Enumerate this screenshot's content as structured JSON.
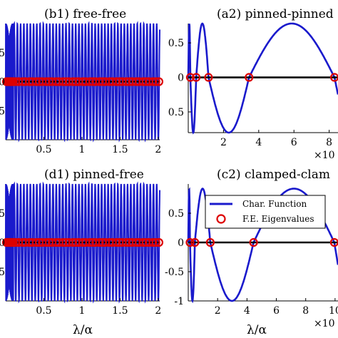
{
  "chart_data": [
    {
      "panel": "b1",
      "type": "line",
      "title": "(b1) free-free",
      "xlim": [
        0,
        2.02
      ],
      "ylim": [
        -1,
        1
      ],
      "xticks": [
        "0.5",
        "1",
        "1.5",
        "2"
      ],
      "yticks_visible": [
        "5",
        "0",
        "5"
      ],
      "series": [
        {
          "kind": "curve",
          "color": "#1a1acc",
          "note_cycles": 23
        },
        {
          "kind": "baseline",
          "color": "#000000",
          "y": 0
        },
        {
          "kind": "markers",
          "color": "#dd0000",
          "x": [
            0.01,
            0.02,
            0.03,
            0.04,
            0.05,
            0.06,
            0.07,
            0.08,
            0.09,
            0.1,
            0.13,
            0.17,
            0.22,
            0.26,
            0.31,
            0.35,
            0.4,
            0.44,
            0.48,
            0.53,
            0.57,
            0.61,
            0.66,
            0.7,
            0.75,
            0.79,
            0.83,
            0.88,
            0.92,
            0.96,
            1.01,
            1.05,
            1.1,
            1.14,
            1.18,
            1.23,
            1.27,
            1.31,
            1.36,
            1.4,
            1.45,
            1.49,
            1.53,
            1.58,
            1.62,
            1.66,
            1.71,
            1.75,
            1.8,
            1.84,
            1.88,
            1.93,
            1.97,
            2.01
          ]
        }
      ]
    },
    {
      "panel": "a2",
      "type": "line",
      "title": "(a2) pinned-pinned",
      "xlim": [
        0,
        8.5
      ],
      "ylim": [
        -0.8,
        0.78
      ],
      "xticks": [
        "2",
        "4",
        "6",
        "8"
      ],
      "yticks": [
        "0.5",
        "0",
        "0.5"
      ],
      "x_exponent": "×10",
      "series": [
        {
          "kind": "curve",
          "color": "#1a1acc",
          "roots": [
            0.12,
            0.45,
            1.15,
            3.45,
            8.3
          ]
        },
        {
          "kind": "baseline",
          "color": "#000000",
          "y": 0
        },
        {
          "kind": "markers",
          "color": "#dd0000",
          "x": [
            0.12,
            0.45,
            1.15,
            3.45,
            8.3
          ]
        }
      ]
    },
    {
      "panel": "d1",
      "type": "line",
      "title": "(d1) pinned-free",
      "xlim": [
        0,
        2.02
      ],
      "ylim": [
        -1,
        1
      ],
      "xticks": [
        "0.5",
        "1",
        "1.5",
        "2"
      ],
      "yticks_visible": [
        "5",
        "0",
        "5"
      ],
      "xlabel": "λ/α",
      "series": [
        {
          "kind": "curve",
          "color": "#1a1acc",
          "note_cycles": 23
        },
        {
          "kind": "baseline",
          "color": "#000000",
          "y": 0
        },
        {
          "kind": "markers",
          "color": "#dd0000",
          "x": [
            0.01,
            0.02,
            0.03,
            0.04,
            0.05,
            0.06,
            0.07,
            0.08,
            0.09,
            0.1,
            0.13,
            0.17,
            0.22,
            0.26,
            0.31,
            0.35,
            0.4,
            0.44,
            0.48,
            0.53,
            0.57,
            0.61,
            0.66,
            0.7,
            0.75,
            0.79,
            0.83,
            0.88,
            0.92,
            0.96,
            1.01,
            1.05,
            1.1,
            1.14,
            1.18,
            1.23,
            1.27,
            1.31,
            1.36,
            1.4,
            1.45,
            1.49,
            1.53,
            1.58,
            1.62,
            1.66,
            1.71,
            1.75,
            1.8,
            1.84,
            1.88,
            1.93,
            1.97,
            2.01
          ]
        }
      ]
    },
    {
      "panel": "c2",
      "type": "line",
      "title": "(c2) clamped-clam",
      "xlim": [
        0,
        10.2
      ],
      "ylim": [
        -1,
        1
      ],
      "xticks": [
        "2",
        "4",
        "6",
        "8",
        "10"
      ],
      "yticks": [
        "0.5",
        "0",
        "-0.5",
        "-1"
      ],
      "x_exponent": "×10",
      "xlabel": "λ/α",
      "legend": {
        "position": "top",
        "entries": [
          "Char. Function",
          "F.E. Eigenvalues"
        ]
      },
      "series": [
        {
          "kind": "curve",
          "name": "Char. Function",
          "color": "#1a1acc",
          "roots": [
            0.12,
            0.45,
            1.5,
            4.45,
            9.95
          ]
        },
        {
          "kind": "baseline",
          "color": "#000000",
          "y": 0
        },
        {
          "kind": "markers",
          "name": "F.E. Eigenvalues",
          "color": "#dd0000",
          "x": [
            0.12,
            0.45,
            1.5,
            4.45,
            9.95
          ]
        }
      ]
    }
  ]
}
